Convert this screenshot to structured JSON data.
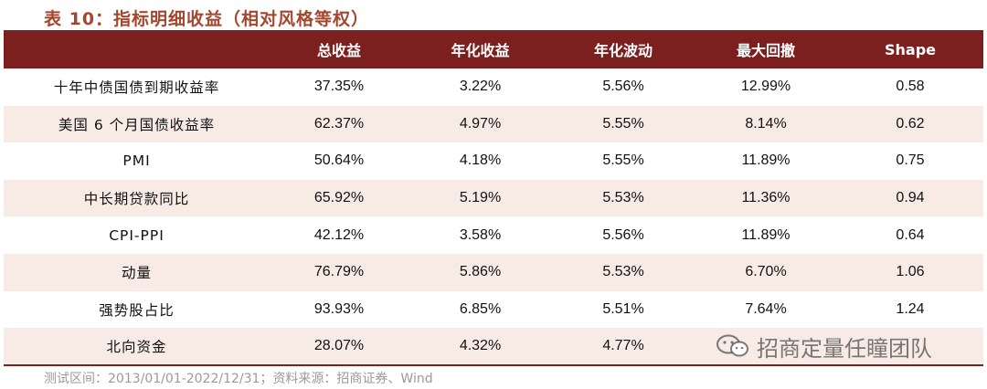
{
  "title": "表 10：指标明细收益（相对风格等权）",
  "table": {
    "headers": [
      "",
      "总收益",
      "年化收益",
      "年化波动",
      "最大回撤",
      "Shape"
    ],
    "rows": [
      {
        "name": "十年中债国债到期收益率",
        "total": "37.35%",
        "annual": "3.22%",
        "vol": "5.56%",
        "mdd": "12.99%",
        "shape": "0.58"
      },
      {
        "name": "美国 6 个月国债收益率",
        "total": "62.37%",
        "annual": "4.97%",
        "vol": "5.55%",
        "mdd": "8.14%",
        "shape": "0.62"
      },
      {
        "name": "PMI",
        "total": "50.64%",
        "annual": "4.18%",
        "vol": "5.55%",
        "mdd": "11.89%",
        "shape": "0.75"
      },
      {
        "name": "中长期贷款同比",
        "total": "65.92%",
        "annual": "5.19%",
        "vol": "5.53%",
        "mdd": "11.36%",
        "shape": "0.94"
      },
      {
        "name": "CPI-PPI",
        "total": "42.12%",
        "annual": "3.58%",
        "vol": "5.56%",
        "mdd": "11.89%",
        "shape": "0.64"
      },
      {
        "name": "动量",
        "total": "76.79%",
        "annual": "5.86%",
        "vol": "5.53%",
        "mdd": "6.70%",
        "shape": "1.06"
      },
      {
        "name": "强势股占比",
        "total": "93.93%",
        "annual": "6.85%",
        "vol": "5.51%",
        "mdd": "7.64%",
        "shape": "1.24"
      },
      {
        "name": "北向资金",
        "total": "28.07%",
        "annual": "4.32%",
        "vol": "4.77%",
        "mdd": "",
        "shape": ""
      }
    ]
  },
  "footer": "测试区间：2013/01/01-2022/12/31；资料来源：招商证券、Wind",
  "watermark": {
    "text": "招商定量任瞳团队",
    "icon": "wechat-icon"
  },
  "colors": {
    "title": "#a5462e",
    "header_bg": "#7b1f1f",
    "stripe": "#f8ebe6"
  }
}
